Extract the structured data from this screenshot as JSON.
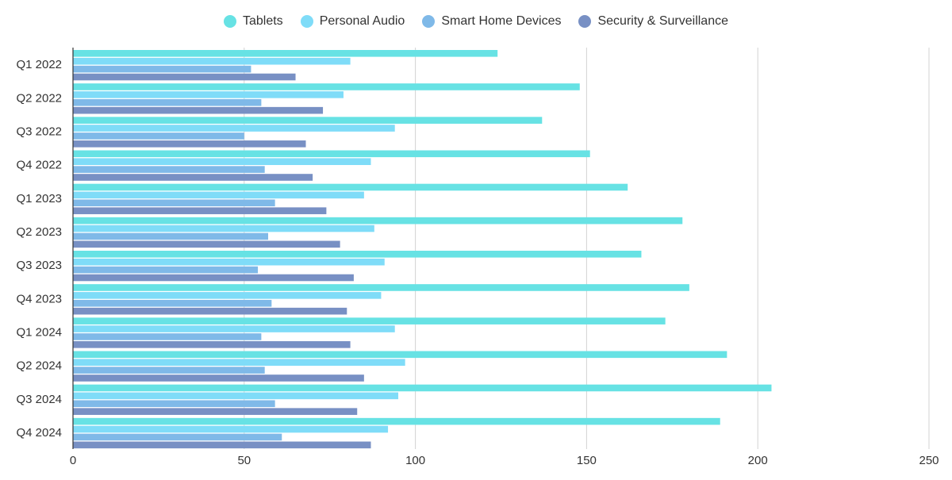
{
  "chart_data": {
    "type": "bar",
    "orientation": "horizontal",
    "categories": [
      "Q1 2022",
      "Q2 2022",
      "Q3 2022",
      "Q4 2022",
      "Q1 2023",
      "Q2 2023",
      "Q3 2023",
      "Q4 2023",
      "Q1 2024",
      "Q2 2024",
      "Q3 2024",
      "Q4 2024"
    ],
    "series": [
      {
        "name": "Tablets",
        "color": "#67e2e4",
        "values": [
          124,
          148,
          137,
          151,
          162,
          178,
          166,
          180,
          173,
          191,
          204,
          189
        ]
      },
      {
        "name": "Personal Audio",
        "color": "#7fdcf8",
        "values": [
          81,
          79,
          94,
          87,
          85,
          88,
          91,
          90,
          94,
          97,
          95,
          92
        ]
      },
      {
        "name": "Smart Home Devices",
        "color": "#7fb9e8",
        "values": [
          52,
          55,
          50,
          56,
          59,
          57,
          54,
          58,
          55,
          56,
          59,
          61
        ]
      },
      {
        "name": "Security & Surveillance",
        "color": "#7890c4",
        "values": [
          65,
          73,
          68,
          70,
          74,
          78,
          82,
          80,
          81,
          85,
          83,
          87
        ]
      }
    ],
    "xlim": [
      0,
      250
    ],
    "xticks": [
      0,
      50,
      100,
      150,
      200,
      250
    ],
    "xlabel": "",
    "ylabel": "",
    "title": "",
    "grid": "vertical",
    "legend_position": "top-center"
  }
}
